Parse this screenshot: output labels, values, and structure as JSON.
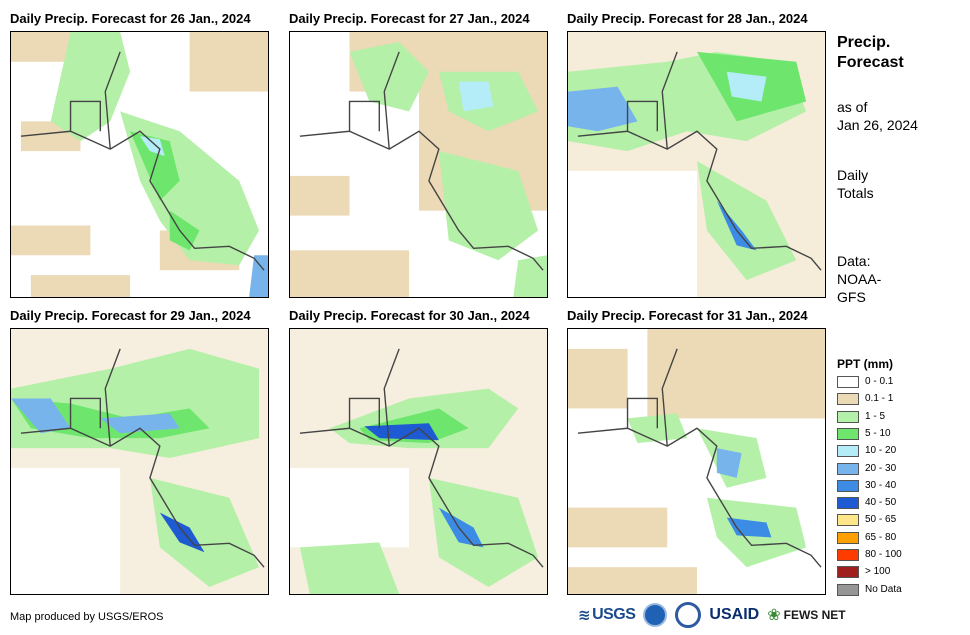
{
  "panels": [
    {
      "title": "Daily Precip. Forecast for 26 Jan., 2024"
    },
    {
      "title": "Daily Precip. Forecast for 27 Jan., 2024"
    },
    {
      "title": "Daily Precip. Forecast for 28 Jan., 2024"
    },
    {
      "title": "Daily Precip. Forecast for 29 Jan., 2024"
    },
    {
      "title": "Daily Precip. Forecast for 30 Jan., 2024"
    },
    {
      "title": "Daily Precip. Forecast for 31 Jan., 2024"
    }
  ],
  "sidebar": {
    "title_line1": "Precip.",
    "title_line2": "Forecast",
    "asof_line1": "as of",
    "asof_line2": "Jan 26, 2024",
    "totals_line1": "Daily",
    "totals_line2": "Totals",
    "source_line1": "Data:",
    "source_line2": "NOAA-",
    "source_line3": "GFS"
  },
  "legend": {
    "title": "PPT (mm)",
    "items": [
      {
        "label": "0 - 0.1",
        "color": "#ffffff"
      },
      {
        "label": "0.1 - 1",
        "color": "#ecd9b6"
      },
      {
        "label": "1 - 5",
        "color": "#b5f0a8"
      },
      {
        "label": "5 - 10",
        "color": "#6ee66e"
      },
      {
        "label": "10 - 20",
        "color": "#b4ecf8"
      },
      {
        "label": "20 - 30",
        "color": "#78b4ec"
      },
      {
        "label": "30 - 40",
        "color": "#3c8ce6"
      },
      {
        "label": "40 - 50",
        "color": "#1e5ad2"
      },
      {
        "label": "50 - 65",
        "color": "#ffe688"
      },
      {
        "label": "65 - 80",
        "color": "#ffa000"
      },
      {
        "label": "80 - 100",
        "color": "#ff3c00"
      },
      {
        "label": "> 100",
        "color": "#a01e1e"
      },
      {
        "label": "No Data",
        "color": "#969696"
      }
    ]
  },
  "footer": {
    "credit": "Map produced by USGS/EROS",
    "logo_usgs": "USGS",
    "logo_usaid": "USAID",
    "logo_fews": "FEWS NET"
  }
}
